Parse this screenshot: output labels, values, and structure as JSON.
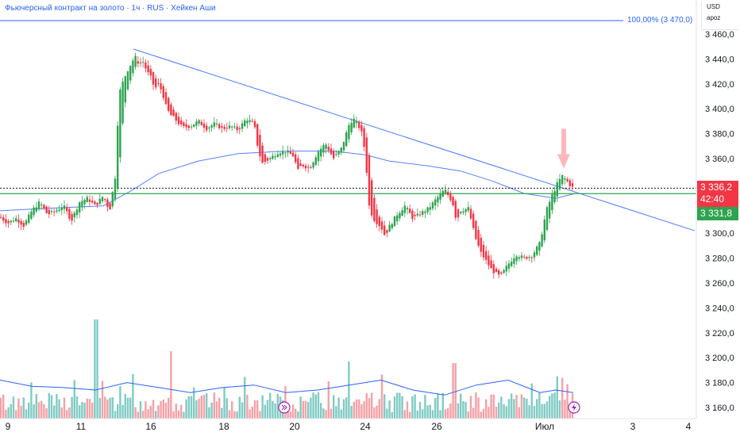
{
  "header": {
    "title": "Фьючерсный контракт на золото · 1ч · RUS · Хейкен Аши"
  },
  "corner": {
    "currency": "USD",
    "mode": "apoz"
  },
  "fib_level": {
    "label": "100,00% (3 470,0)",
    "value": 3470.0
  },
  "price_badges": {
    "last_price": "3 336,2",
    "countdown": "42:40",
    "support_price": "3 331,8"
  },
  "colors": {
    "up": "#26a69a",
    "up_body": "#2ea44f",
    "down": "#f23645",
    "line": "#2962ff",
    "support": "#2ea44f",
    "volume_up": "#80cbc4",
    "volume_down": "#f7a1a6"
  },
  "icons": {
    "goto_realtime": "goto-realtime-icon",
    "flash": "flash-icon"
  },
  "chart_data": {
    "type": "candlestick",
    "y_ticks": [
      "3 460,0",
      "3 440,0",
      "3 420,0",
      "3 400,0",
      "3 380,0",
      "3 360,0",
      "3 340,0",
      "3 320,0",
      "3 300,0",
      "3 280,0",
      "3 260,0",
      "3 240,0",
      "3 220,0",
      "3 200,0",
      "3 180,0",
      "3 160,0"
    ],
    "ylim": [
      3155,
      3465
    ],
    "x_ticks": [
      "9",
      "11",
      "16",
      "18",
      "20",
      "24",
      "26",
      "Июл",
      "3",
      "4"
    ],
    "close_path": [
      [
        0,
        3313
      ],
      [
        10,
        3308
      ],
      [
        20,
        3312
      ],
      [
        30,
        3306
      ],
      [
        40,
        3318
      ],
      [
        50,
        3325
      ],
      [
        60,
        3315
      ],
      [
        70,
        3318
      ],
      [
        80,
        3322
      ],
      [
        90,
        3310
      ],
      [
        100,
        3325
      ],
      [
        110,
        3328
      ],
      [
        120,
        3322
      ],
      [
        130,
        3330
      ],
      [
        138,
        3318
      ],
      [
        145,
        3345
      ],
      [
        150,
        3412
      ],
      [
        155,
        3422
      ],
      [
        160,
        3430
      ],
      [
        165,
        3436
      ],
      [
        170,
        3442
      ],
      [
        175,
        3436
      ],
      [
        180,
        3438
      ],
      [
        185,
        3430
      ],
      [
        190,
        3425
      ],
      [
        195,
        3416
      ],
      [
        200,
        3420
      ],
      [
        205,
        3412
      ],
      [
        210,
        3400
      ],
      [
        215,
        3395
      ],
      [
        220,
        3392
      ],
      [
        230,
        3385
      ],
      [
        240,
        3386
      ],
      [
        250,
        3390
      ],
      [
        260,
        3384
      ],
      [
        270,
        3388
      ],
      [
        280,
        3384
      ],
      [
        290,
        3386
      ],
      [
        300,
        3383
      ],
      [
        310,
        3392
      ],
      [
        320,
        3388
      ],
      [
        325,
        3368
      ],
      [
        330,
        3356
      ],
      [
        340,
        3360
      ],
      [
        350,
        3365
      ],
      [
        360,
        3366
      ],
      [
        370,
        3362
      ],
      [
        375,
        3350
      ],
      [
        380,
        3355
      ],
      [
        390,
        3352
      ],
      [
        400,
        3365
      ],
      [
        410,
        3372
      ],
      [
        420,
        3360
      ],
      [
        430,
        3368
      ],
      [
        440,
        3388
      ],
      [
        445,
        3392
      ],
      [
        450,
        3388
      ],
      [
        455,
        3382
      ],
      [
        460,
        3365
      ],
      [
        465,
        3322
      ],
      [
        470,
        3312
      ],
      [
        480,
        3305
      ],
      [
        485,
        3298
      ],
      [
        490,
        3305
      ],
      [
        500,
        3315
      ],
      [
        510,
        3322
      ],
      [
        520,
        3312
      ],
      [
        530,
        3316
      ],
      [
        540,
        3320
      ],
      [
        550,
        3328
      ],
      [
        560,
        3335
      ],
      [
        570,
        3325
      ],
      [
        575,
        3310
      ],
      [
        580,
        3318
      ],
      [
        590,
        3320
      ],
      [
        598,
        3298
      ],
      [
        605,
        3285
      ],
      [
        612,
        3278
      ],
      [
        620,
        3270
      ],
      [
        630,
        3265
      ],
      [
        640,
        3275
      ],
      [
        650,
        3283
      ],
      [
        660,
        3280
      ],
      [
        670,
        3282
      ],
      [
        680,
        3292
      ],
      [
        688,
        3318
      ],
      [
        695,
        3330
      ],
      [
        702,
        3340
      ],
      [
        708,
        3346
      ],
      [
        714,
        3342
      ],
      [
        720,
        3337
      ],
      [
        725,
        3336
      ]
    ],
    "ma_path": [
      [
        0,
        3318
      ],
      [
        60,
        3320
      ],
      [
        130,
        3322
      ],
      [
        165,
        3334
      ],
      [
        200,
        3348
      ],
      [
        250,
        3358
      ],
      [
        300,
        3364
      ],
      [
        360,
        3366
      ],
      [
        420,
        3366
      ],
      [
        460,
        3363
      ],
      [
        490,
        3358
      ],
      [
        540,
        3354
      ],
      [
        580,
        3350
      ],
      [
        620,
        3342
      ],
      [
        660,
        3332
      ],
      [
        700,
        3328
      ],
      [
        725,
        3332
      ]
    ],
    "trendline": [
      [
        168,
        3448
      ],
      [
        875,
        3302
      ]
    ],
    "support_level": 3331.8,
    "dotted_level": 3336.2,
    "volume_ma_path": [
      [
        0,
        3182
      ],
      [
        40,
        3177
      ],
      [
        80,
        3176
      ],
      [
        120,
        3174
      ],
      [
        160,
        3180
      ],
      [
        200,
        3176
      ],
      [
        240,
        3172
      ],
      [
        280,
        3176
      ],
      [
        320,
        3178
      ],
      [
        360,
        3172
      ],
      [
        400,
        3174
      ],
      [
        440,
        3178
      ],
      [
        480,
        3182
      ],
      [
        520,
        3174
      ],
      [
        560,
        3170
      ],
      [
        600,
        3178
      ],
      [
        640,
        3182
      ],
      [
        680,
        3172
      ],
      [
        700,
        3174
      ],
      [
        722,
        3172
      ]
    ],
    "annotation_arrow_x": 710,
    "annotation_arrow_value": 3352
  }
}
